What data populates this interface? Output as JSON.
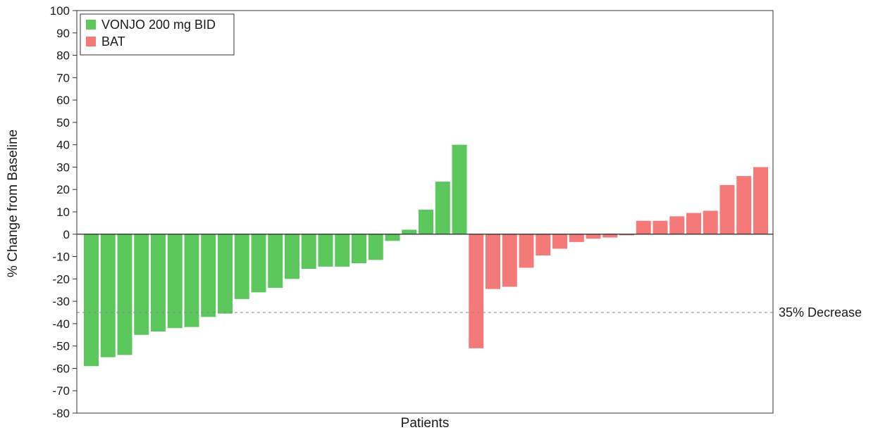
{
  "chart_data": {
    "type": "bar",
    "xlabel": "Patients",
    "ylabel": "% Change from Baseline",
    "ylim": [
      -80,
      100
    ],
    "yticks": [
      100,
      90,
      80,
      70,
      60,
      50,
      40,
      30,
      20,
      10,
      0,
      -10,
      -20,
      -30,
      -40,
      -50,
      -60,
      -70,
      -80
    ],
    "grid": false,
    "legend_position": "top-left",
    "series": [
      {
        "name": "VONJO 200 mg BID",
        "color": "#5cc75c",
        "values": [
          -59,
          -55,
          -54,
          -45,
          -43.5,
          -42,
          -41.5,
          -37,
          -35.5,
          -29,
          -26,
          -24,
          -20,
          -15.5,
          -14.5,
          -14.5,
          -13,
          -11.5,
          -3,
          2,
          11,
          23.5,
          40
        ]
      },
      {
        "name": "BAT",
        "color": "#f47a7a",
        "values": [
          -51,
          -24.5,
          -23.5,
          -15,
          -9.5,
          -6.5,
          -3.5,
          -2,
          -1.5,
          -0.5,
          6,
          6,
          8,
          9.5,
          10.5,
          22,
          26,
          30
        ]
      }
    ],
    "reference_line": {
      "y": -35,
      "label": "35% Decrease"
    }
  }
}
